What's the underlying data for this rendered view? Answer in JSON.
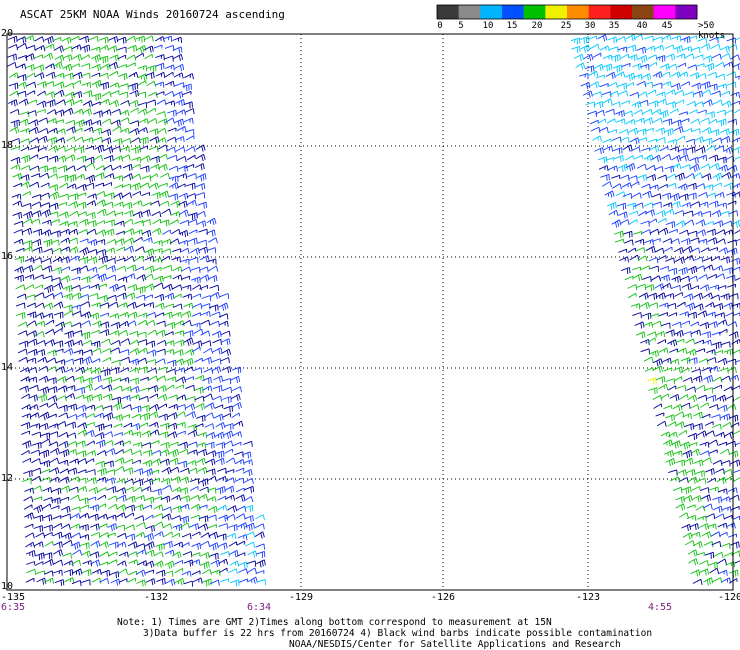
{
  "title": "ASCAT 25KM NOAA Winds 20160724 ascending",
  "colorbar": {
    "labels": [
      "0",
      "5",
      "10",
      "15",
      "20",
      "25",
      "30",
      "35",
      "40",
      "45",
      ">50 knots"
    ],
    "colors": [
      "#3a3a3a",
      "#8a8a8a",
      "#00b4ff",
      "#0050ff",
      "#00c000",
      "#f0f000",
      "#ff8c00",
      "#ff2020",
      "#d00000",
      "#8b4513",
      "#ff00ff",
      "#8000c0"
    ]
  },
  "axes": {
    "lat_labels": [
      "20",
      "18",
      "16",
      "14",
      "12",
      "10"
    ],
    "lon_labels": [
      "-135",
      "-132",
      "-129",
      "-126",
      "-123",
      "-120"
    ]
  },
  "times": [
    "6:35",
    "6:34",
    "4:55"
  ],
  "notes": [
    "Note: 1) Times are GMT 2)Times along bottom correspond to measurement at 15N",
    "3)Data buffer is 22 hrs from 20160724 4) Black wind barbs indicate possible contamination",
    "NOAA/NESDIS/Center for Satellite Applications and Research"
  ],
  "wind_colors": {
    "navy": "#00009a",
    "blue": "#1a3cff",
    "green": "#10c010",
    "lime": "#30d030",
    "cyan": "#00c8ff",
    "yellow": "#f0f000"
  }
}
